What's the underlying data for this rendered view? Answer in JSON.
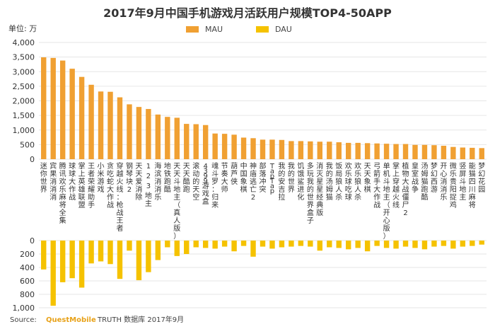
{
  "title": "2017年9月中国手机游戏月活跃用户规模TOP4-50APP",
  "unit_label": "单位: 万",
  "source": {
    "prefix": "Source:",
    "brand": "QuestMobile",
    "suffix": "TRUTH 数据库 2017年9月"
  },
  "colors": {
    "mau": "#f0a032",
    "dau": "#f5c200"
  },
  "chart_data": [
    {
      "type": "bar",
      "categories": [
        "迷你世界",
        "宾果消消消",
        "腾讯欢乐麻将全集",
        "球球大作战",
        "掌上英雄联盟",
        "王者荣耀助手",
        "小米游戏",
        "贪吃蛇大作战",
        "穿越火线：枪战王者",
        "钢琴块2",
        "天天爱消除",
        "1 2 3 地主",
        "海滨消消乐",
        "地铁跑酷",
        "天天斗地主（真人版）",
        "天天酷跑",
        "滚动的天空",
        "4399游戏盒",
        "魂斗罗：归来",
        "节奏大师",
        "葫芦侠",
        "中国象棋",
        "神庙逃亡2",
        "部落冲突",
        "TapTap",
        "我的安吉拉",
        "我的世界",
        "饥饿鲨进化",
        "多玩我的世界盒子",
        "消灭星星经典版",
        "我的汤姆猫",
        "饭局狼人杀",
        "欢乐球吃球",
        "欢乐狼人杀",
        "天天象棋",
        "弓箭手大作战",
        "单机斗地主（开心版）",
        "掌上穿越火线",
        "植物大战僵尸2",
        "皇室战争",
        "汤姆猫跑酷",
        "梦幻西游",
        "开心消消乐",
        "微乐贵阳捉鸡",
        "竖屏斗地主",
        "能猫四川麻将",
        "梦幻花园"
      ],
      "series": [
        {
          "name": "MAU",
          "values": [
            3490,
            3470,
            3380,
            3100,
            2820,
            2550,
            2320,
            2310,
            2120,
            1880,
            1790,
            1720,
            1530,
            1450,
            1420,
            1210,
            1200,
            1170,
            880,
            870,
            840,
            740,
            720,
            670,
            670,
            660,
            620,
            620,
            610,
            600,
            600,
            580,
            560,
            560,
            550,
            540,
            530,
            520,
            520,
            490,
            490,
            480,
            460,
            420,
            400,
            390,
            380
          ]
        }
      ],
      "ylim": [
        0,
        4000
      ],
      "yticks": [
        "0",
        "500",
        "1,000",
        "1,500",
        "2,000",
        "2,500",
        "3,000",
        "3,500",
        "4,000"
      ],
      "legend_position": "top-center"
    },
    {
      "type": "bar",
      "categories": [
        "迷你世界",
        "宾果消消消",
        "腾讯欢乐麻将全集",
        "球球大作战",
        "掌上英雄联盟",
        "王者荣耀助手",
        "小米游戏",
        "贪吃蛇大作战",
        "穿越火线：枪战王者",
        "钢琴块2",
        "天天爱消除",
        "1 2 3 地主",
        "海滨消消乐",
        "地铁跑酷",
        "天天斗地主（真人版）",
        "天天酷跑",
        "滚动的天空",
        "4399游戏盒",
        "魂斗罗：归来",
        "节奏大师",
        "葫芦侠",
        "中国象棋",
        "神庙逃亡2",
        "部落冲突",
        "TapTap",
        "我的安吉拉",
        "我的世界",
        "饥饿鲨进化",
        "多玩我的世界盒子",
        "消灭星星经典版",
        "我的汤姆猫",
        "饭局狼人杀",
        "欢乐球吃球",
        "欢乐狼人杀",
        "天天象棋",
        "弓箭手大作战",
        "单机斗地主（开心版）",
        "掌上穿越火线",
        "植物大战僵尸2",
        "皇室战争",
        "汤姆猫跑酷",
        "梦幻西游",
        "开心消消乐",
        "微乐贵阳捉鸡",
        "竖屏斗地主",
        "能猫四川麻将",
        "梦幻花园"
      ],
      "series": [
        {
          "name": "DAU",
          "values": [
            430,
            970,
            620,
            560,
            700,
            340,
            310,
            350,
            570,
            150,
            590,
            470,
            290,
            100,
            230,
            200,
            100,
            110,
            120,
            90,
            160,
            80,
            240,
            90,
            120,
            100,
            90,
            80,
            90,
            150,
            100,
            110,
            130,
            110,
            160,
            80,
            110,
            120,
            90,
            110,
            130,
            90,
            80,
            120,
            90,
            80,
            60
          ]
        }
      ],
      "ylim": [
        0,
        1000
      ],
      "yticks": [
        "0",
        "200",
        "400",
        "600",
        "800",
        "1,000"
      ],
      "inverted": true
    }
  ]
}
